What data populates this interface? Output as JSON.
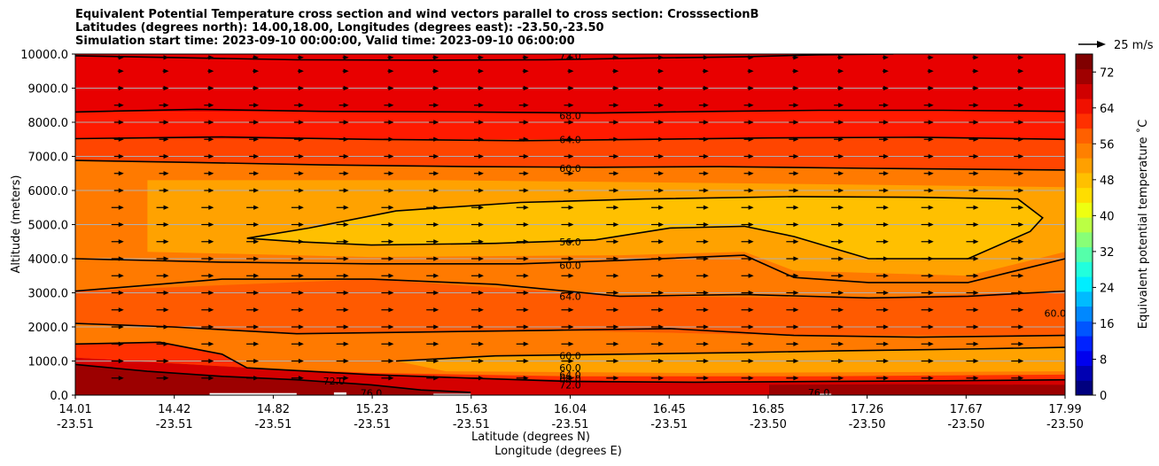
{
  "chart_data": {
    "type": "contour",
    "title_lines": [
      "Equivalent Potential Temperature cross section and wind vectors parallel to cross section: CrosssectionB",
      "Latitudes (degrees north): 14.00,18.00, Longitudes (degrees east): -23.50,-23.50",
      "Simulation start time: 2023-09-10 00:00:00, Valid time: 2023-09-10 06:00:00"
    ],
    "ylabel": "Altitude (meters)",
    "xlabel_lat": "Latitude (degrees N)",
    "xlabel_lon": "Longitude (degrees E)",
    "ylim": [
      0,
      10000
    ],
    "y_ticks": [
      "0.0",
      "1000.0",
      "2000.0",
      "3000.0",
      "4000.0",
      "5000.0",
      "6000.0",
      "7000.0",
      "8000.0",
      "9000.0",
      "10000.0"
    ],
    "y_tick_values": [
      0,
      1000,
      2000,
      3000,
      4000,
      5000,
      6000,
      7000,
      8000,
      9000,
      10000
    ],
    "x_ticks": [
      {
        "lat": "14.01",
        "lon": "-23.51"
      },
      {
        "lat": "14.42",
        "lon": "-23.51"
      },
      {
        "lat": "14.82",
        "lon": "-23.51"
      },
      {
        "lat": "15.23",
        "lon": "-23.51"
      },
      {
        "lat": "15.63",
        "lon": "-23.51"
      },
      {
        "lat": "16.04",
        "lon": "-23.51"
      },
      {
        "lat": "16.45",
        "lon": "-23.51"
      },
      {
        "lat": "16.85",
        "lon": "-23.50"
      },
      {
        "lat": "17.26",
        "lon": "-23.50"
      },
      {
        "lat": "17.67",
        "lon": "-23.50"
      },
      {
        "lat": "17.99",
        "lon": "-23.50"
      }
    ],
    "colorbar": {
      "label": "Equivalent potential temperature ˚C",
      "ticks": [
        "0",
        "8",
        "16",
        "24",
        "32",
        "40",
        "48",
        "56",
        "64",
        "72"
      ],
      "range": [
        0,
        76
      ],
      "colors": [
        "#00007f",
        "#0000b2",
        "#0000ee",
        "#0022ff",
        "#0055ff",
        "#0088ff",
        "#00bbff",
        "#00eeff",
        "#22ffdd",
        "#55ffaa",
        "#88ff77",
        "#bbff44",
        "#eeff11",
        "#ffdd00",
        "#ffc000",
        "#ffa000",
        "#ff8000",
        "#ff6000",
        "#ff3000",
        "#f01000",
        "#d00000",
        "#a00000",
        "#800000"
      ]
    },
    "wind_reference": "25 m/s",
    "contour_labels": [
      {
        "text": "72.0",
        "lat": 16.0,
        "alt": 9950
      },
      {
        "text": "68.0",
        "lat": 16.0,
        "alt": 8200
      },
      {
        "text": "64.0",
        "lat": 16.0,
        "alt": 7500
      },
      {
        "text": "60.0",
        "lat": 16.0,
        "alt": 6650
      },
      {
        "text": "56.0",
        "lat": 16.0,
        "alt": 4500
      },
      {
        "text": "60.0",
        "lat": 16.0,
        "alt": 3800
      },
      {
        "text": "64.0",
        "lat": 16.0,
        "alt": 2900
      },
      {
        "text": "60.0",
        "lat": 16.0,
        "alt": 1150
      },
      {
        "text": "60.0",
        "lat": 16.0,
        "alt": 800
      },
      {
        "text": "64.0",
        "lat": 16.0,
        "alt": 600
      },
      {
        "text": "68.0",
        "lat": 16.0,
        "alt": 480
      },
      {
        "text": "72.0",
        "lat": 16.0,
        "alt": 300
      },
      {
        "text": "72.0",
        "lat": 15.05,
        "alt": 420
      },
      {
        "text": "76.0",
        "lat": 15.2,
        "alt": 60
      },
      {
        "text": "76.0",
        "lat": 17.0,
        "alt": 80
      },
      {
        "text": "60.0",
        "lat": 17.95,
        "alt": 2400
      }
    ],
    "contours": [
      {
        "level": 72,
        "points": [
          [
            14.01,
            9950
          ],
          [
            14.4,
            9900
          ],
          [
            14.9,
            9830
          ],
          [
            15.4,
            9820
          ],
          [
            15.9,
            9830
          ],
          [
            16.3,
            9880
          ],
          [
            16.7,
            9920
          ],
          [
            17.0,
            9980
          ],
          [
            17.3,
            10000
          ]
        ]
      },
      {
        "level": 68,
        "points": [
          [
            14.01,
            8300
          ],
          [
            14.5,
            8380
          ],
          [
            15.0,
            8320
          ],
          [
            15.6,
            8300
          ],
          [
            16.1,
            8270
          ],
          [
            16.6,
            8320
          ],
          [
            17.0,
            8350
          ],
          [
            17.5,
            8350
          ],
          [
            17.99,
            8320
          ]
        ]
      },
      {
        "level": 64,
        "points": [
          [
            14.01,
            7520
          ],
          [
            14.6,
            7570
          ],
          [
            15.2,
            7500
          ],
          [
            15.8,
            7460
          ],
          [
            16.3,
            7500
          ],
          [
            16.8,
            7540
          ],
          [
            17.4,
            7560
          ],
          [
            17.99,
            7500
          ]
        ]
      },
      {
        "level": 60,
        "points": [
          [
            14.01,
            6880
          ],
          [
            14.5,
            6820
          ],
          [
            15.0,
            6750
          ],
          [
            15.6,
            6700
          ],
          [
            16.1,
            6680
          ],
          [
            16.6,
            6700
          ],
          [
            17.2,
            6650
          ],
          [
            17.99,
            6600
          ]
        ]
      },
      {
        "level": 56,
        "closed": true,
        "points": [
          [
            14.7,
            4600
          ],
          [
            14.95,
            4900
          ],
          [
            15.3,
            5400
          ],
          [
            15.8,
            5650
          ],
          [
            16.3,
            5750
          ],
          [
            16.9,
            5820
          ],
          [
            17.4,
            5800
          ],
          [
            17.8,
            5750
          ],
          [
            17.9,
            5200
          ],
          [
            17.85,
            4800
          ],
          [
            17.6,
            4000
          ],
          [
            17.2,
            4000
          ],
          [
            16.9,
            4650
          ],
          [
            16.7,
            4950
          ],
          [
            16.4,
            4900
          ],
          [
            16.1,
            4550
          ],
          [
            15.7,
            4450
          ],
          [
            15.2,
            4400
          ],
          [
            14.9,
            4500
          ],
          [
            14.7,
            4600
          ]
        ]
      },
      {
        "level": 60,
        "points": [
          [
            14.01,
            4000
          ],
          [
            14.6,
            3900
          ],
          [
            15.2,
            3850
          ],
          [
            15.8,
            3850
          ],
          [
            16.2,
            3950
          ],
          [
            16.7,
            4100
          ],
          [
            16.9,
            3450
          ],
          [
            17.2,
            3300
          ],
          [
            17.6,
            3300
          ],
          [
            17.99,
            4000
          ]
        ]
      },
      {
        "level": 64,
        "points": [
          [
            14.01,
            3050
          ],
          [
            14.6,
            3400
          ],
          [
            15.2,
            3400
          ],
          [
            15.7,
            3250
          ],
          [
            16.2,
            2900
          ],
          [
            16.7,
            2950
          ],
          [
            17.2,
            2850
          ],
          [
            17.6,
            2900
          ],
          [
            17.99,
            3050
          ]
        ]
      },
      {
        "level": 68,
        "points": [
          [
            14.01,
            2100
          ],
          [
            14.4,
            2000
          ],
          [
            14.9,
            1800
          ],
          [
            15.4,
            1850
          ],
          [
            15.9,
            1900
          ],
          [
            16.4,
            1950
          ],
          [
            16.9,
            1750
          ],
          [
            17.4,
            1700
          ],
          [
            17.99,
            1750
          ]
        ]
      },
      {
        "level": 60,
        "points": [
          [
            15.3,
            1000
          ],
          [
            15.7,
            1150
          ],
          [
            16.2,
            1200
          ],
          [
            16.7,
            1250
          ],
          [
            17.1,
            1300
          ],
          [
            17.6,
            1350
          ],
          [
            17.99,
            1400
          ]
        ]
      },
      {
        "level": 72,
        "points": [
          [
            14.01,
            1500
          ],
          [
            14.35,
            1550
          ],
          [
            14.6,
            1200
          ],
          [
            14.7,
            800
          ],
          [
            14.95,
            700
          ],
          [
            15.2,
            600
          ],
          [
            15.6,
            500
          ],
          [
            16.0,
            400
          ],
          [
            16.5,
            380
          ],
          [
            17.0,
            400
          ],
          [
            17.5,
            420
          ],
          [
            17.99,
            450
          ]
        ]
      },
      {
        "level": 76,
        "points": [
          [
            14.01,
            900
          ],
          [
            14.3,
            700
          ],
          [
            14.6,
            550
          ],
          [
            14.9,
            450
          ],
          [
            15.2,
            300
          ],
          [
            15.4,
            150
          ],
          [
            15.6,
            80
          ]
        ]
      }
    ],
    "wind_rows": [
      9900,
      9500,
      9000,
      8500,
      8000,
      7500,
      7000,
      6500,
      6000,
      5500,
      5000,
      4500,
      4000,
      3500,
      3000,
      2500,
      2000,
      1500,
      1000,
      500
    ],
    "wind_cols": 21
  }
}
